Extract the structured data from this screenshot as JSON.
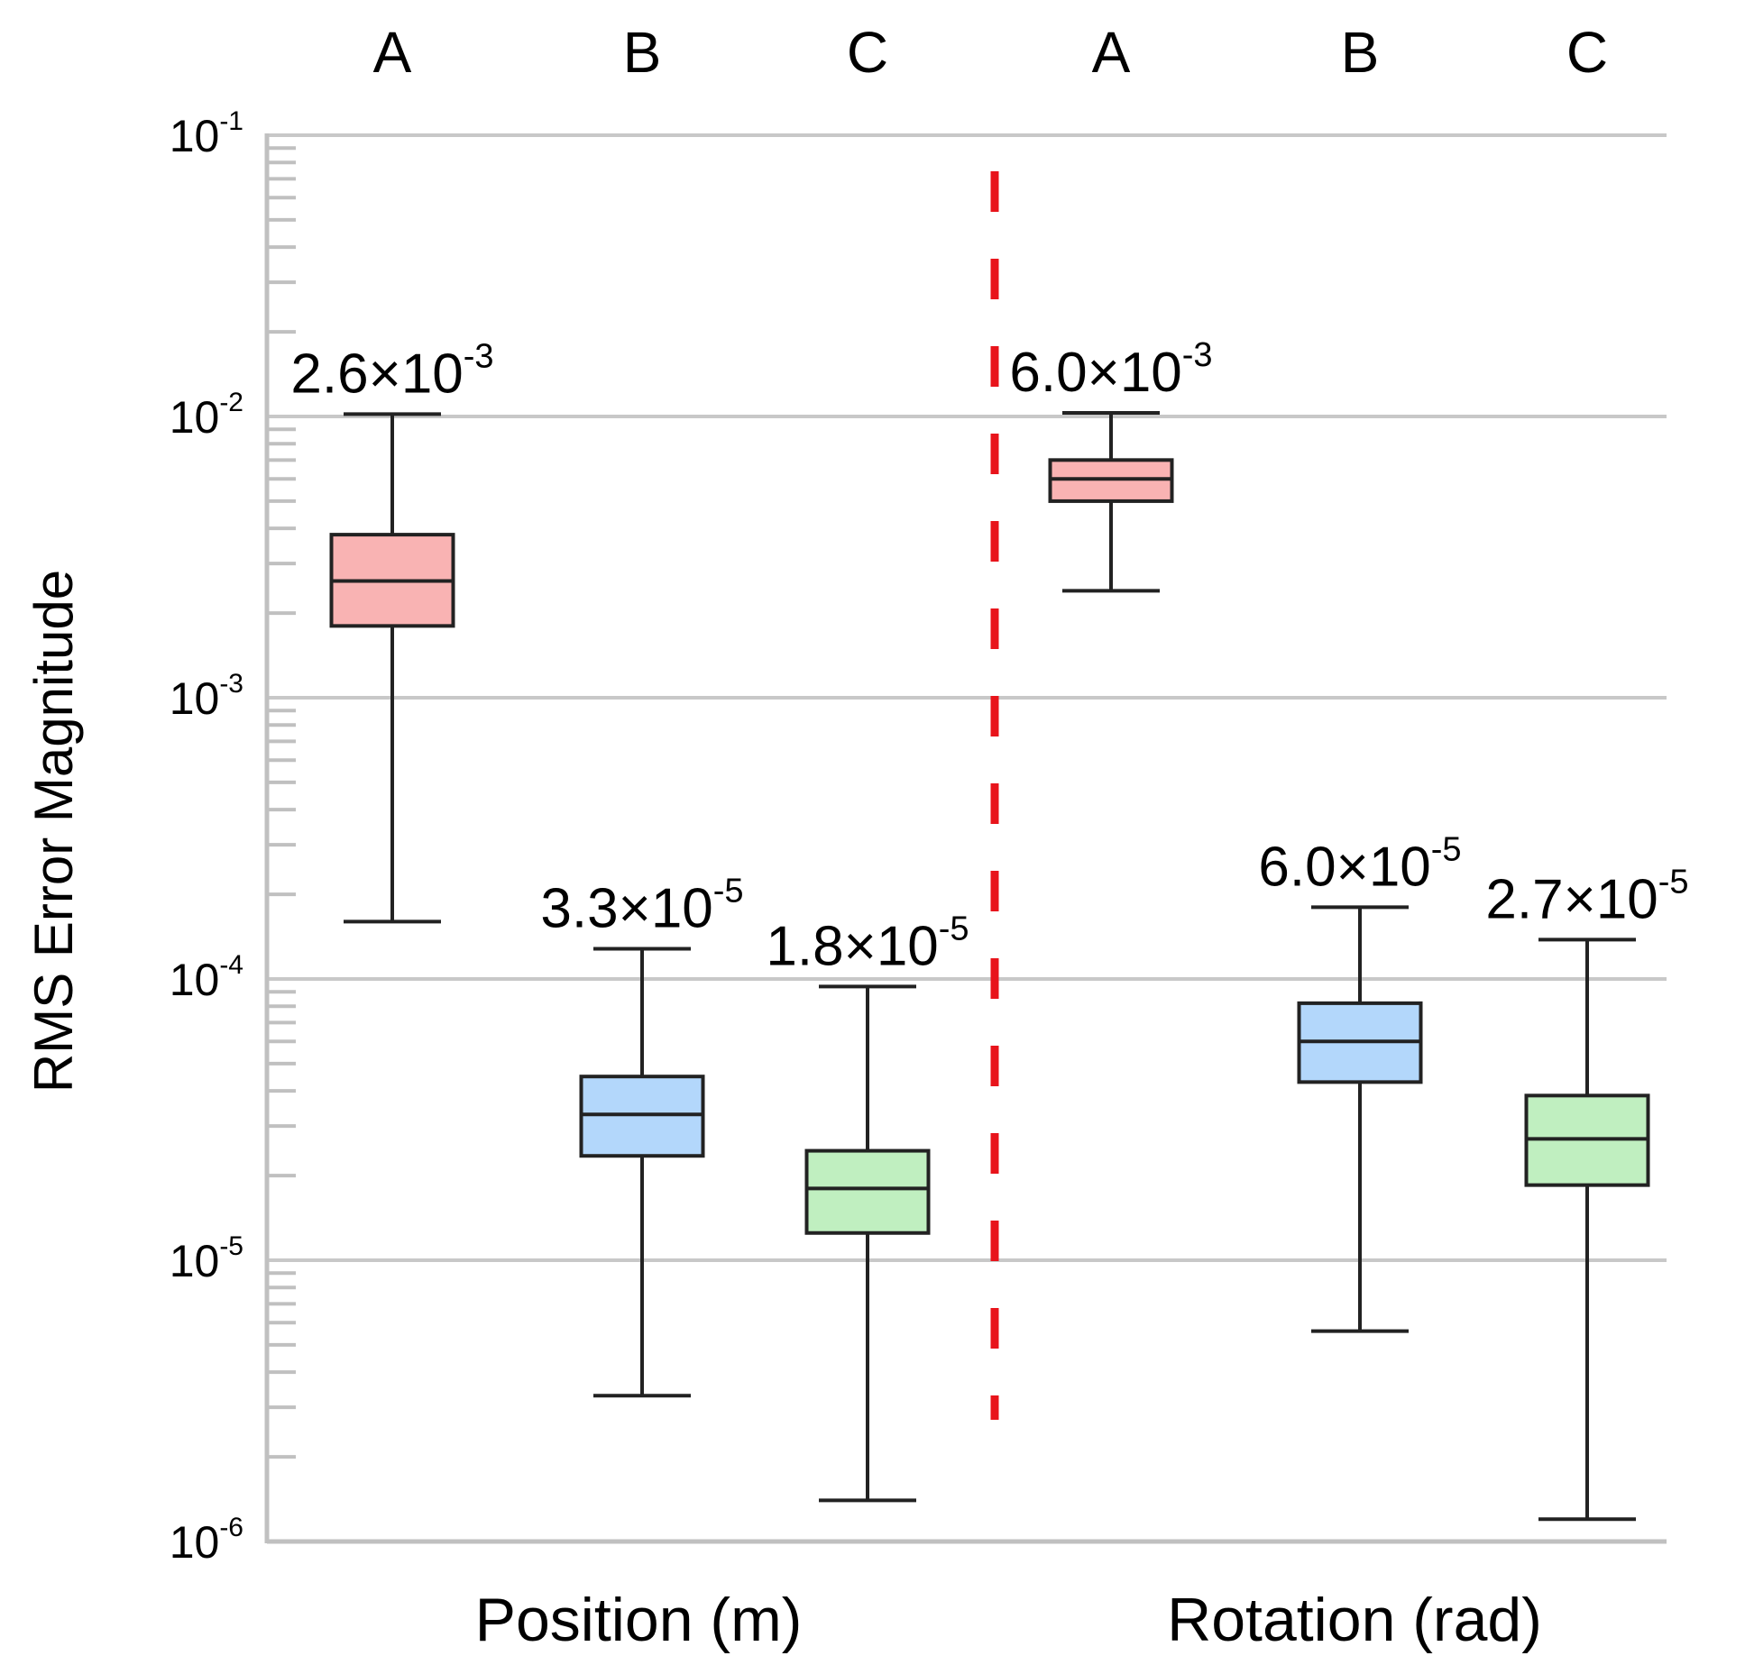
{
  "chart_data": {
    "type": "boxplot",
    "ylabel": "RMS Error Magnitude",
    "yscale": "log",
    "ylim": [
      1e-06,
      0.1
    ],
    "y_ticks": [
      {
        "value": 0.1,
        "base": "10",
        "exp": "-1"
      },
      {
        "value": 0.01,
        "base": "10",
        "exp": "-2"
      },
      {
        "value": 0.001,
        "base": "10",
        "exp": "-3"
      },
      {
        "value": 0.0001,
        "base": "10",
        "exp": "-4"
      },
      {
        "value": 1e-05,
        "base": "10",
        "exp": "-5"
      },
      {
        "value": 1e-06,
        "base": "10",
        "exp": "-6"
      }
    ],
    "grid": true,
    "groups": [
      {
        "name": "Position (m)",
        "boxes": [
          {
            "category": "A",
            "min": 0.00016,
            "q1": 0.0018,
            "median": 0.0026,
            "q3": 0.0038,
            "max": 0.0102,
            "annotation_base": "2.6×10",
            "annotation_exp": "-3",
            "color": "#f9b3b3"
          },
          {
            "category": "B",
            "min": 3.3e-06,
            "q1": 2.35e-05,
            "median": 3.3e-05,
            "q3": 4.5e-05,
            "max": 0.000128,
            "annotation_base": "3.3×10",
            "annotation_exp": "-5",
            "color": "#b3d7fb"
          },
          {
            "category": "C",
            "min": 1.4e-06,
            "q1": 1.25e-05,
            "median": 1.8e-05,
            "q3": 2.45e-05,
            "max": 9.4e-05,
            "annotation_base": "1.8×10",
            "annotation_exp": "-5",
            "color": "#c0efc0"
          }
        ]
      },
      {
        "name": "Rotation (rad)",
        "boxes": [
          {
            "category": "A",
            "min": 0.0024,
            "q1": 0.005,
            "median": 0.006,
            "q3": 0.007,
            "max": 0.0103,
            "annotation_base": "6.0×10",
            "annotation_exp": "-3",
            "color": "#f9b3b3"
          },
          {
            "category": "B",
            "min": 5.6e-06,
            "q1": 4.3e-05,
            "median": 6e-05,
            "q3": 8.2e-05,
            "max": 0.00018,
            "annotation_base": "6.0×10",
            "annotation_exp": "-5",
            "color": "#b3d7fb"
          },
          {
            "category": "C",
            "min": 1.2e-06,
            "q1": 1.85e-05,
            "median": 2.7e-05,
            "q3": 3.85e-05,
            "max": 0.000138,
            "annotation_base": "2.7×10",
            "annotation_exp": "-5",
            "color": "#c0efc0"
          }
        ]
      }
    ],
    "separator_color": "#e8141b",
    "grid_color": "#c8c8c8",
    "axis_color": "#c0c0c0"
  }
}
